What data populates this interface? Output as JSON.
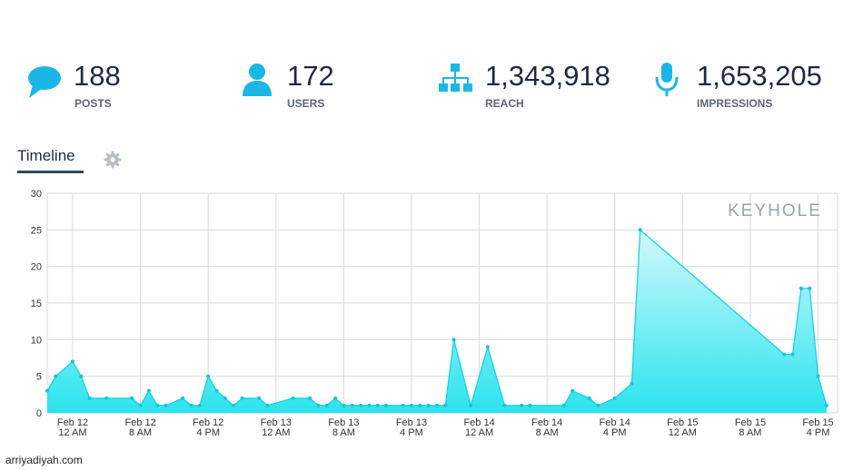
{
  "stats": [
    {
      "value": "188",
      "label": "POSTS",
      "icon": "speech-bubble-icon"
    },
    {
      "value": "172",
      "label": "USERS",
      "icon": "user-icon"
    },
    {
      "value": "1,343,918",
      "label": "REACH",
      "icon": "network-hierarchy-icon"
    },
    {
      "value": "1,653,205",
      "label": "IMPRESSIONS",
      "icon": "microphone-icon"
    }
  ],
  "tab": {
    "label": "Timeline"
  },
  "brand": "KEYHOLE",
  "watermark": "arriyadiyah.com",
  "colors": {
    "accent": "#1ab7e6",
    "fill": "#33e6ee",
    "line": "#17d3e3"
  },
  "chart_data": {
    "type": "area",
    "ylim": [
      0,
      30
    ],
    "yticks": [
      0,
      5,
      10,
      15,
      20,
      25,
      30
    ],
    "xticks": [
      {
        "x": 0,
        "line1": "Feb 12",
        "line2": "12 AM"
      },
      {
        "x": 8,
        "line1": "Feb 12",
        "line2": "8 AM"
      },
      {
        "x": 16,
        "line1": "Feb 12",
        "line2": "4 PM"
      },
      {
        "x": 24,
        "line1": "Feb 13",
        "line2": "12 AM"
      },
      {
        "x": 32,
        "line1": "Feb 13",
        "line2": "8 AM"
      },
      {
        "x": 40,
        "line1": "Feb 13",
        "line2": "4 PM"
      },
      {
        "x": 48,
        "line1": "Feb 14",
        "line2": "12 AM"
      },
      {
        "x": 56,
        "line1": "Feb 14",
        "line2": "8 AM"
      },
      {
        "x": 64,
        "line1": "Feb 14",
        "line2": "4 PM"
      },
      {
        "x": 72,
        "line1": "Feb 15",
        "line2": "12 AM"
      },
      {
        "x": 80,
        "line1": "Feb 15",
        "line2": "8 AM"
      },
      {
        "x": 88,
        "line1": "Feb 15",
        "line2": "4 PM"
      }
    ],
    "xlim": [
      -3,
      90.3
    ],
    "grid": true,
    "points": [
      [
        -3,
        3
      ],
      [
        -2,
        5
      ],
      [
        0,
        7
      ],
      [
        1,
        5
      ],
      [
        2,
        2
      ],
      [
        4,
        2
      ],
      [
        7,
        2
      ],
      [
        8,
        1
      ],
      [
        9,
        3
      ],
      [
        10,
        1
      ],
      [
        11,
        1
      ],
      [
        13,
        2
      ],
      [
        14,
        1
      ],
      [
        15,
        1
      ],
      [
        16,
        5
      ],
      [
        17,
        3
      ],
      [
        18,
        2
      ],
      [
        19,
        1
      ],
      [
        20,
        2
      ],
      [
        22,
        2
      ],
      [
        23,
        1
      ],
      [
        26,
        2
      ],
      [
        28,
        2
      ],
      [
        29,
        1
      ],
      [
        30,
        1
      ],
      [
        31,
        2
      ],
      [
        32,
        1
      ],
      [
        33,
        1
      ],
      [
        34,
        1
      ],
      [
        35,
        1
      ],
      [
        36,
        1
      ],
      [
        37,
        1
      ],
      [
        39,
        1
      ],
      [
        40,
        1
      ],
      [
        41,
        1
      ],
      [
        42,
        1
      ],
      [
        43,
        1
      ],
      [
        44,
        1
      ],
      [
        45,
        10
      ],
      [
        47,
        1
      ],
      [
        49,
        9
      ],
      [
        51,
        1
      ],
      [
        53,
        1
      ],
      [
        54,
        1
      ],
      [
        58,
        1
      ],
      [
        59,
        3
      ],
      [
        61,
        2
      ],
      [
        62,
        1
      ],
      [
        64,
        2
      ],
      [
        66,
        4
      ],
      [
        67,
        25
      ],
      [
        84,
        8
      ],
      [
        85,
        8
      ],
      [
        86,
        17
      ],
      [
        87,
        17
      ],
      [
        88,
        5
      ],
      [
        89,
        1
      ]
    ]
  }
}
